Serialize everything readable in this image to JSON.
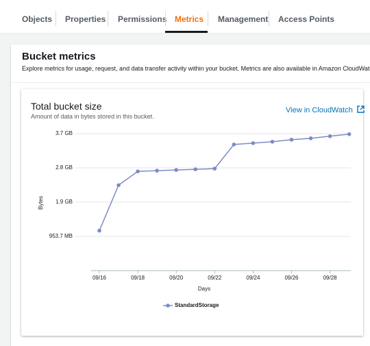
{
  "tabs": [
    "Objects",
    "Properties",
    "Permissions",
    "Metrics",
    "Management",
    "Access Points"
  ],
  "panel": {
    "title": "Bucket metrics",
    "description": "Explore metrics for usage, request, and data transfer activity within your bucket. Metrics are also available in Amazon CloudWatch. Learn"
  },
  "link": "View in CloudWatch",
  "chart_data": {
    "type": "line",
    "title": "Total bucket size",
    "subtitle": "Amount of data in bytes stored in this bucket.",
    "x_label": "Days",
    "y_label": "Bytes",
    "categories": [
      "09/16",
      null,
      "09/18",
      null,
      "09/20",
      null,
      "09/22",
      null,
      "09/24",
      null,
      "09/26",
      null,
      "09/28",
      null
    ],
    "series": [
      {
        "name": "StandardStorage",
        "color": "#7b8cc7",
        "values": [
          1167000000,
          2495000000,
          2897000000,
          2918000000,
          2938000000,
          2958000000,
          2978000000,
          3682000000,
          3722000000,
          3763000000,
          3823000000,
          3863000000,
          3924000000,
          3984000000
        ]
      }
    ],
    "ylim": [
      0,
      4100000000
    ],
    "yticks": [
      {
        "value": 1000000000,
        "label": "953.7 MB"
      },
      {
        "value": 2000000000,
        "label": "1.9 GB"
      },
      {
        "value": 3000000000,
        "label": "2.8 GB"
      },
      {
        "value": 4000000000,
        "label": "3.7 GB"
      }
    ],
    "grid": true
  }
}
